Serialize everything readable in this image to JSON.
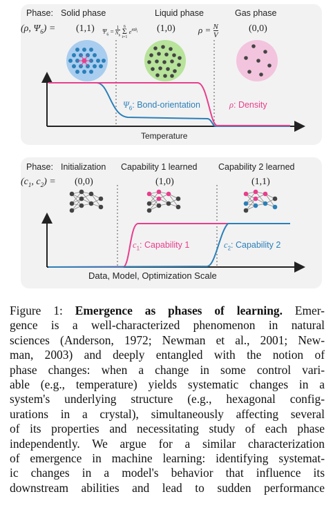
{
  "panel_top": {
    "row_label": "Phase:",
    "phases": [
      "Solid phase",
      "Liquid phase",
      "Gas phase"
    ],
    "param_label": "(ρ, Ψ6) =",
    "values": [
      "(1,1)",
      "(1,0)",
      "(0,0)"
    ],
    "formula_psi": "Ψ6 = (1/Nb) Σ e^(i6θi)",
    "formula_rho": "ρ = N / V",
    "curve_labels": {
      "psi": "Ψ6: Bond-orientation",
      "rho": "ρ: Density"
    },
    "x_axis": "Temperature",
    "colors": {
      "pink": "#e83e8c",
      "blue": "#2a7fb8",
      "solid_bg": "#a9cdef",
      "liquid_bg": "#b7e39a",
      "gas_bg": "#f3c4dd"
    }
  },
  "panel_bottom": {
    "row_label": "Phase:",
    "phases": [
      "Initialization",
      "Capability 1 learned",
      "Capability 2 learned"
    ],
    "param_label": "(c1, c2) =",
    "values": [
      "(0,0)",
      "(1,0)",
      "(1,1)"
    ],
    "curve_labels": {
      "c1": "c1: Capability 1",
      "c2": "c2: Capability 2"
    },
    "x_axis": "Data, Model, Optimization Scale"
  },
  "caption": {
    "prefix": "Figure 1:",
    "title": "Emergence as phases of learning.",
    "lines": [
      "Emer-",
      "gence is a well-characterized phenomenon in natural",
      "sciences (Anderson, 1972; Newman et al., 2001; New-",
      "man, 2003) and deeply entangled with the notion of",
      "phase changes: when a change in some control vari-",
      "able (e.g., temperature) yields systematic changes in a",
      "system's underlying structure (e.g., hexagonal config-",
      "urations in a crystal), simultaneously affecting several",
      "of its properties and necessitating study of each phase",
      "independently. We argue for a similar characterization",
      "of emergence in machine learning: identifying systemat-",
      "ic changes in a model's behavior that influence its",
      "downstream abilities and lead to sudden performance"
    ]
  }
}
